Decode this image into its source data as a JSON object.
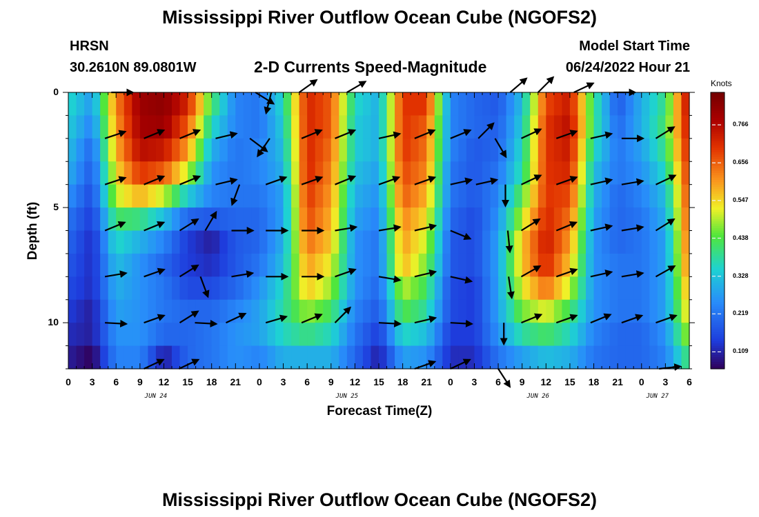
{
  "title": "Mississippi River Outflow Ocean Cube (NGOFS2)",
  "station": {
    "name": "HRSN",
    "coords": "30.2610N  89.0801W"
  },
  "subtitle": "2-D Currents Speed-Magnitude",
  "model_start": {
    "label": "Model Start Time",
    "value": "06/24/2022 Hour 21"
  },
  "footer_title": "Mississippi River Outflow Ocean Cube (NGOFS2)",
  "chart_data": {
    "type": "heatmap",
    "xlabel": "Forecast Time(Z)",
    "ylabel": "Depth (ft)",
    "x_tick_labels": [
      "0",
      "3",
      "6",
      "9",
      "12",
      "15",
      "18",
      "21",
      "0",
      "3",
      "6",
      "9",
      "12",
      "15",
      "18",
      "21",
      "0",
      "3",
      "6",
      "9",
      "12",
      "15",
      "18",
      "21",
      "0",
      "3",
      "6"
    ],
    "date_labels": [
      {
        "label": "JUN 24",
        "hour_index": 11
      },
      {
        "label": "JUN 25",
        "hour_index": 35
      },
      {
        "label": "JUN 26",
        "hour_index": 59
      },
      {
        "label": "JUN 27",
        "hour_index": 74
      }
    ],
    "x_range_hours": [
      0,
      78
    ],
    "y_tick_labels": [
      "0",
      "5",
      "10"
    ],
    "y_range_ft": [
      0,
      12
    ],
    "colorbar": {
      "unit": "Knots",
      "tick_labels": [
        "0.766",
        "0.656",
        "0.547",
        "0.438",
        "0.328",
        "0.219",
        "0.109"
      ],
      "tick_values": [
        0.766,
        0.656,
        0.547,
        0.438,
        0.328,
        0.219,
        0.109
      ],
      "range": [
        0.06,
        0.86
      ]
    },
    "depth_rows_ft": [
      0.5,
      1.5,
      2.5,
      3.5,
      4.5,
      5.5,
      6.5,
      7.5,
      8.5,
      9.5,
      10.5,
      11.5
    ],
    "column_hours": [
      0,
      3,
      6,
      9,
      12,
      15,
      18,
      21,
      24,
      27,
      30,
      33,
      36,
      39,
      42,
      45,
      48,
      51,
      54,
      57,
      60,
      63,
      66,
      69,
      72,
      75,
      78
    ],
    "speed_knots": [
      [
        0.36,
        0.27,
        0.62,
        0.8,
        0.82,
        0.72,
        0.42,
        0.24,
        0.22,
        0.36,
        0.72,
        0.66,
        0.36,
        0.3,
        0.7,
        0.7,
        0.24,
        0.2,
        0.18,
        0.32,
        0.68,
        0.74,
        0.4,
        0.18,
        0.3,
        0.4,
        0.78
      ],
      [
        0.34,
        0.24,
        0.6,
        0.79,
        0.8,
        0.66,
        0.36,
        0.24,
        0.22,
        0.34,
        0.72,
        0.66,
        0.34,
        0.3,
        0.7,
        0.66,
        0.24,
        0.2,
        0.19,
        0.34,
        0.7,
        0.76,
        0.4,
        0.2,
        0.3,
        0.42,
        0.76
      ],
      [
        0.32,
        0.2,
        0.58,
        0.76,
        0.74,
        0.6,
        0.3,
        0.22,
        0.24,
        0.32,
        0.72,
        0.64,
        0.34,
        0.3,
        0.7,
        0.64,
        0.24,
        0.18,
        0.2,
        0.36,
        0.7,
        0.74,
        0.36,
        0.22,
        0.28,
        0.4,
        0.74
      ],
      [
        0.3,
        0.18,
        0.54,
        0.7,
        0.66,
        0.5,
        0.26,
        0.22,
        0.24,
        0.3,
        0.72,
        0.62,
        0.32,
        0.28,
        0.68,
        0.62,
        0.22,
        0.18,
        0.22,
        0.38,
        0.7,
        0.72,
        0.32,
        0.22,
        0.26,
        0.36,
        0.72
      ],
      [
        0.26,
        0.16,
        0.5,
        0.58,
        0.5,
        0.34,
        0.24,
        0.22,
        0.22,
        0.28,
        0.7,
        0.6,
        0.3,
        0.26,
        0.66,
        0.58,
        0.22,
        0.18,
        0.24,
        0.44,
        0.7,
        0.68,
        0.3,
        0.2,
        0.24,
        0.32,
        0.7
      ],
      [
        0.22,
        0.14,
        0.42,
        0.4,
        0.32,
        0.2,
        0.18,
        0.2,
        0.2,
        0.28,
        0.68,
        0.58,
        0.28,
        0.24,
        0.62,
        0.54,
        0.2,
        0.16,
        0.26,
        0.5,
        0.72,
        0.64,
        0.28,
        0.2,
        0.22,
        0.3,
        0.68
      ],
      [
        0.2,
        0.12,
        0.36,
        0.3,
        0.24,
        0.14,
        0.1,
        0.18,
        0.2,
        0.3,
        0.64,
        0.56,
        0.26,
        0.22,
        0.6,
        0.5,
        0.18,
        0.16,
        0.28,
        0.56,
        0.74,
        0.6,
        0.26,
        0.2,
        0.22,
        0.28,
        0.66
      ],
      [
        0.18,
        0.12,
        0.32,
        0.26,
        0.2,
        0.14,
        0.12,
        0.18,
        0.22,
        0.32,
        0.6,
        0.52,
        0.26,
        0.22,
        0.58,
        0.46,
        0.18,
        0.16,
        0.28,
        0.56,
        0.72,
        0.56,
        0.26,
        0.22,
        0.22,
        0.28,
        0.64
      ],
      [
        0.16,
        0.12,
        0.3,
        0.26,
        0.22,
        0.16,
        0.16,
        0.2,
        0.26,
        0.36,
        0.56,
        0.48,
        0.26,
        0.2,
        0.5,
        0.42,
        0.16,
        0.14,
        0.28,
        0.52,
        0.64,
        0.5,
        0.26,
        0.22,
        0.22,
        0.28,
        0.6
      ],
      [
        0.14,
        0.1,
        0.28,
        0.26,
        0.22,
        0.2,
        0.2,
        0.24,
        0.28,
        0.38,
        0.48,
        0.42,
        0.24,
        0.18,
        0.44,
        0.38,
        0.16,
        0.14,
        0.28,
        0.46,
        0.52,
        0.42,
        0.26,
        0.22,
        0.22,
        0.28,
        0.56
      ],
      [
        0.12,
        0.1,
        0.26,
        0.26,
        0.2,
        0.2,
        0.22,
        0.26,
        0.28,
        0.36,
        0.4,
        0.36,
        0.22,
        0.14,
        0.36,
        0.32,
        0.14,
        0.14,
        0.26,
        0.38,
        0.42,
        0.36,
        0.24,
        0.2,
        0.2,
        0.26,
        0.5
      ],
      [
        0.1,
        0.06,
        0.24,
        0.24,
        0.1,
        0.2,
        0.22,
        0.26,
        0.24,
        0.3,
        0.3,
        0.3,
        0.2,
        0.1,
        0.28,
        0.26,
        0.12,
        0.12,
        0.22,
        0.28,
        0.32,
        0.3,
        0.22,
        0.2,
        0.2,
        0.24,
        0.42
      ]
    ],
    "vector_depths_ft": [
      0,
      2,
      4,
      6,
      8,
      10,
      12
    ],
    "vectors": [
      {
        "t": 5.4,
        "d": 0,
        "dx": 0.9,
        "dy": 0.0
      },
      {
        "t": 23.5,
        "d": 0,
        "dx": 0.8,
        "dy": 0.5
      },
      {
        "t": 25.5,
        "d": 0,
        "dx": -0.25,
        "dy": 1.0
      },
      {
        "t": 29,
        "d": 0,
        "dx": 0.7,
        "dy": -0.5
      },
      {
        "t": 35,
        "d": 0,
        "dx": 0.85,
        "dy": -0.5
      },
      {
        "t": 55.5,
        "d": 0,
        "dx": 0.7,
        "dy": -0.6
      },
      {
        "t": 59,
        "d": 0,
        "dx": 0.6,
        "dy": -0.6
      },
      {
        "t": 63.5,
        "d": 0,
        "dx": 0.85,
        "dy": -0.4
      },
      {
        "t": 68.5,
        "d": 0,
        "dx": 0.9,
        "dy": 0.0
      },
      {
        "t": 4.6,
        "d": 2,
        "dx": 0.9,
        "dy": -0.3
      },
      {
        "t": 9.5,
        "d": 2,
        "dx": 0.85,
        "dy": -0.35
      },
      {
        "t": 14,
        "d": 2,
        "dx": 0.85,
        "dy": -0.35
      },
      {
        "t": 18.5,
        "d": 2,
        "dx": 0.85,
        "dy": -0.2
      },
      {
        "t": 22.8,
        "d": 2,
        "dx": 0.8,
        "dy": 0.6
      },
      {
        "t": 25.3,
        "d": 2,
        "dx": -0.55,
        "dy": 0.8
      },
      {
        "t": 29.3,
        "d": 2,
        "dx": 0.85,
        "dy": -0.35
      },
      {
        "t": 33.5,
        "d": 2,
        "dx": 0.85,
        "dy": -0.35
      },
      {
        "t": 39,
        "d": 2,
        "dx": 0.9,
        "dy": -0.2
      },
      {
        "t": 43.5,
        "d": 2,
        "dx": 0.85,
        "dy": -0.35
      },
      {
        "t": 48,
        "d": 2,
        "dx": 0.85,
        "dy": -0.35
      },
      {
        "t": 51.5,
        "d": 2,
        "dx": 0.7,
        "dy": -0.7
      },
      {
        "t": 53.6,
        "d": 2,
        "dx": 0.5,
        "dy": 0.85
      },
      {
        "t": 56.9,
        "d": 2,
        "dx": 0.85,
        "dy": -0.4
      },
      {
        "t": 61.3,
        "d": 2,
        "dx": 0.85,
        "dy": -0.3
      },
      {
        "t": 65.6,
        "d": 2,
        "dx": 0.9,
        "dy": -0.2
      },
      {
        "t": 69.5,
        "d": 2,
        "dx": 0.9,
        "dy": 0.0
      },
      {
        "t": 73.8,
        "d": 2,
        "dx": 0.8,
        "dy": -0.5
      },
      {
        "t": 4.6,
        "d": 4,
        "dx": 0.9,
        "dy": -0.3
      },
      {
        "t": 9.5,
        "d": 4,
        "dx": 0.85,
        "dy": -0.35
      },
      {
        "t": 14,
        "d": 4,
        "dx": 0.85,
        "dy": -0.35
      },
      {
        "t": 18.5,
        "d": 4,
        "dx": 0.85,
        "dy": -0.2
      },
      {
        "t": 21.5,
        "d": 4,
        "dx": -0.35,
        "dy": 0.95
      },
      {
        "t": 24.8,
        "d": 4,
        "dx": 0.85,
        "dy": -0.3
      },
      {
        "t": 29.3,
        "d": 4,
        "dx": 0.85,
        "dy": -0.3
      },
      {
        "t": 33.5,
        "d": 4,
        "dx": 0.85,
        "dy": -0.35
      },
      {
        "t": 39,
        "d": 4,
        "dx": 0.85,
        "dy": -0.3
      },
      {
        "t": 43.5,
        "d": 4,
        "dx": 0.85,
        "dy": -0.3
      },
      {
        "t": 48,
        "d": 4,
        "dx": 0.9,
        "dy": -0.2
      },
      {
        "t": 51.2,
        "d": 4,
        "dx": 0.9,
        "dy": -0.2
      },
      {
        "t": 54.9,
        "d": 4,
        "dx": 0.0,
        "dy": 1.0
      },
      {
        "t": 56.9,
        "d": 4,
        "dx": 0.85,
        "dy": -0.4
      },
      {
        "t": 61.3,
        "d": 4,
        "dx": 0.85,
        "dy": -0.3
      },
      {
        "t": 65.6,
        "d": 4,
        "dx": 0.9,
        "dy": -0.2
      },
      {
        "t": 69.5,
        "d": 4,
        "dx": 0.9,
        "dy": -0.15
      },
      {
        "t": 73.8,
        "d": 4,
        "dx": 0.85,
        "dy": -0.4
      },
      {
        "t": 4.6,
        "d": 6,
        "dx": 0.85,
        "dy": -0.35
      },
      {
        "t": 9.5,
        "d": 6,
        "dx": 0.85,
        "dy": -0.35
      },
      {
        "t": 14,
        "d": 6,
        "dx": 0.8,
        "dy": -0.5
      },
      {
        "t": 17.2,
        "d": 6,
        "dx": 0.5,
        "dy": -0.85
      },
      {
        "t": 20.5,
        "d": 6,
        "dx": 0.9,
        "dy": 0.0
      },
      {
        "t": 24.8,
        "d": 6,
        "dx": 0.9,
        "dy": 0.0
      },
      {
        "t": 29.3,
        "d": 6,
        "dx": 0.9,
        "dy": 0.0
      },
      {
        "t": 33.5,
        "d": 6,
        "dx": 0.9,
        "dy": -0.15
      },
      {
        "t": 39,
        "d": 6,
        "dx": 0.9,
        "dy": -0.15
      },
      {
        "t": 43.5,
        "d": 6,
        "dx": 0.85,
        "dy": -0.2
      },
      {
        "t": 48,
        "d": 6,
        "dx": 0.85,
        "dy": 0.35
      },
      {
        "t": 55.2,
        "d": 6,
        "dx": 0.1,
        "dy": 1.0
      },
      {
        "t": 56.9,
        "d": 6,
        "dx": 0.8,
        "dy": -0.5
      },
      {
        "t": 61.3,
        "d": 6,
        "dx": 0.85,
        "dy": -0.35
      },
      {
        "t": 65.6,
        "d": 6,
        "dx": 0.9,
        "dy": -0.2
      },
      {
        "t": 69.5,
        "d": 6,
        "dx": 0.9,
        "dy": -0.15
      },
      {
        "t": 73.8,
        "d": 6,
        "dx": 0.8,
        "dy": -0.5
      },
      {
        "t": 4.6,
        "d": 8,
        "dx": 0.9,
        "dy": -0.15
      },
      {
        "t": 9.5,
        "d": 8,
        "dx": 0.85,
        "dy": -0.3
      },
      {
        "t": 14,
        "d": 8,
        "dx": 0.8,
        "dy": -0.5
      },
      {
        "t": 16.6,
        "d": 8,
        "dx": 0.35,
        "dy": 0.95
      },
      {
        "t": 20.5,
        "d": 8,
        "dx": 0.9,
        "dy": -0.15
      },
      {
        "t": 24.8,
        "d": 8,
        "dx": 0.9,
        "dy": 0.0
      },
      {
        "t": 29.3,
        "d": 8,
        "dx": 0.9,
        "dy": 0.0
      },
      {
        "t": 33.5,
        "d": 8,
        "dx": 0.85,
        "dy": -0.3
      },
      {
        "t": 39,
        "d": 8,
        "dx": 0.9,
        "dy": 0.15
      },
      {
        "t": 43.5,
        "d": 8,
        "dx": 0.85,
        "dy": -0.2
      },
      {
        "t": 48,
        "d": 8,
        "dx": 0.9,
        "dy": 0.2
      },
      {
        "t": 55.3,
        "d": 8,
        "dx": 0.15,
        "dy": 1.0
      },
      {
        "t": 56.9,
        "d": 8,
        "dx": 0.8,
        "dy": -0.45
      },
      {
        "t": 61.3,
        "d": 8,
        "dx": 0.85,
        "dy": -0.3
      },
      {
        "t": 65.6,
        "d": 8,
        "dx": 0.9,
        "dy": -0.2
      },
      {
        "t": 69.5,
        "d": 8,
        "dx": 0.9,
        "dy": -0.15
      },
      {
        "t": 73.8,
        "d": 8,
        "dx": 0.8,
        "dy": -0.45
      },
      {
        "t": 4.6,
        "d": 10,
        "dx": 0.9,
        "dy": 0.05
      },
      {
        "t": 9.5,
        "d": 10,
        "dx": 0.85,
        "dy": -0.3
      },
      {
        "t": 14,
        "d": 10,
        "dx": 0.8,
        "dy": -0.5
      },
      {
        "t": 15.9,
        "d": 10,
        "dx": 0.9,
        "dy": 0.05
      },
      {
        "t": 19.8,
        "d": 10,
        "dx": 0.85,
        "dy": -0.4
      },
      {
        "t": 24.8,
        "d": 10,
        "dx": 0.85,
        "dy": -0.25
      },
      {
        "t": 29.3,
        "d": 10,
        "dx": 0.85,
        "dy": -0.35
      },
      {
        "t": 33.5,
        "d": 10,
        "dx": 0.7,
        "dy": -0.7
      },
      {
        "t": 39,
        "d": 10,
        "dx": 0.9,
        "dy": 0.05
      },
      {
        "t": 43.5,
        "d": 10,
        "dx": 0.85,
        "dy": -0.2
      },
      {
        "t": 48,
        "d": 10,
        "dx": 0.9,
        "dy": 0.05
      },
      {
        "t": 54.7,
        "d": 10,
        "dx": 0.0,
        "dy": 1.0
      },
      {
        "t": 56.9,
        "d": 10,
        "dx": 0.85,
        "dy": -0.35
      },
      {
        "t": 61.3,
        "d": 10,
        "dx": 0.85,
        "dy": -0.3
      },
      {
        "t": 65.6,
        "d": 10,
        "dx": 0.85,
        "dy": -0.35
      },
      {
        "t": 69.5,
        "d": 10,
        "dx": 0.85,
        "dy": -0.3
      },
      {
        "t": 73.8,
        "d": 10,
        "dx": 0.85,
        "dy": -0.3
      },
      {
        "t": 9.5,
        "d": 12,
        "dx": 0.85,
        "dy": -0.4
      },
      {
        "t": 13.9,
        "d": 12,
        "dx": 0.85,
        "dy": -0.4
      },
      {
        "t": 43.5,
        "d": 12,
        "dx": 0.85,
        "dy": -0.3
      },
      {
        "t": 48,
        "d": 12,
        "dx": 0.85,
        "dy": -0.4
      },
      {
        "t": 54,
        "d": 12,
        "dx": 0.55,
        "dy": 0.85
      },
      {
        "t": 74.2,
        "d": 12,
        "dx": 0.9,
        "dy": -0.1
      }
    ]
  }
}
